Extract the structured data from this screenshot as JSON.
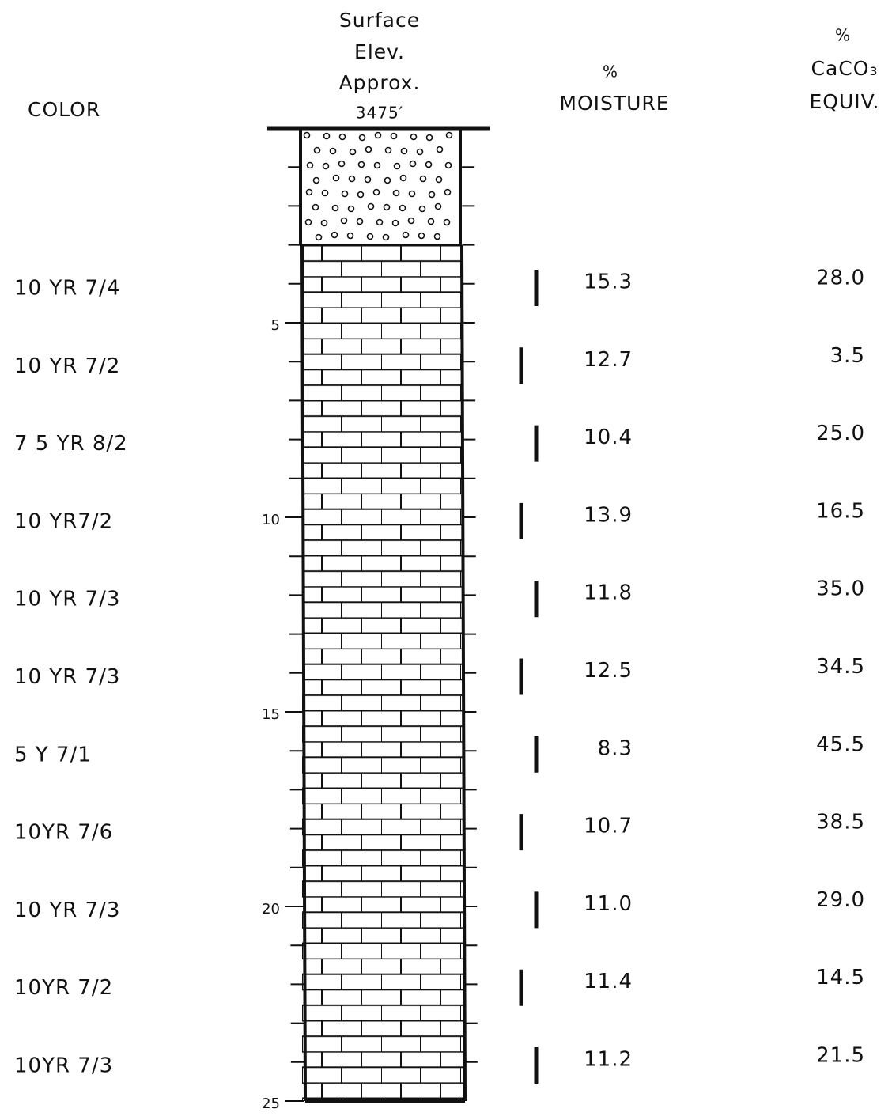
{
  "header": {
    "color": "COLOR",
    "surface": [
      "Surface",
      "Elev.",
      "Approx.",
      "3475′"
    ],
    "moisture": [
      "%",
      "MOISTURE"
    ],
    "caco3": [
      "%",
      "CaCO₃",
      "EQUIV."
    ]
  },
  "depth_ticks": [
    5,
    10,
    15,
    20,
    25
  ],
  "rows": [
    {
      "color": "10 YR 7/4",
      "moisture": "15.3",
      "caco3": "28.0"
    },
    {
      "color": "10 YR 7/2",
      "moisture": "12.7",
      "caco3": "3.5"
    },
    {
      "color": "7 5 YR 8/2",
      "moisture": "10.4",
      "caco3": "25.0"
    },
    {
      "color": "10 YR7/2",
      "moisture": "13.9",
      "caco3": "16.5"
    },
    {
      "color": "10 YR 7/3",
      "moisture": "11.8",
      "caco3": "35.0"
    },
    {
      "color": "10 YR 7/3",
      "moisture": "12.5",
      "caco3": "34.5"
    },
    {
      "color": "5 Y 7/1",
      "moisture": "8.3",
      "caco3": "45.5"
    },
    {
      "color": "10YR 7/6",
      "moisture": "10.7",
      "caco3": "38.5"
    },
    {
      "color": "10 YR 7/3",
      "moisture": "11.0",
      "caco3": "29.0"
    },
    {
      "color": "10YR 7/2",
      "moisture": "11.4",
      "caco3": "14.5"
    },
    {
      "color": "10YR 7/3",
      "moisture": "11.2",
      "caco3": "21.5"
    }
  ]
}
